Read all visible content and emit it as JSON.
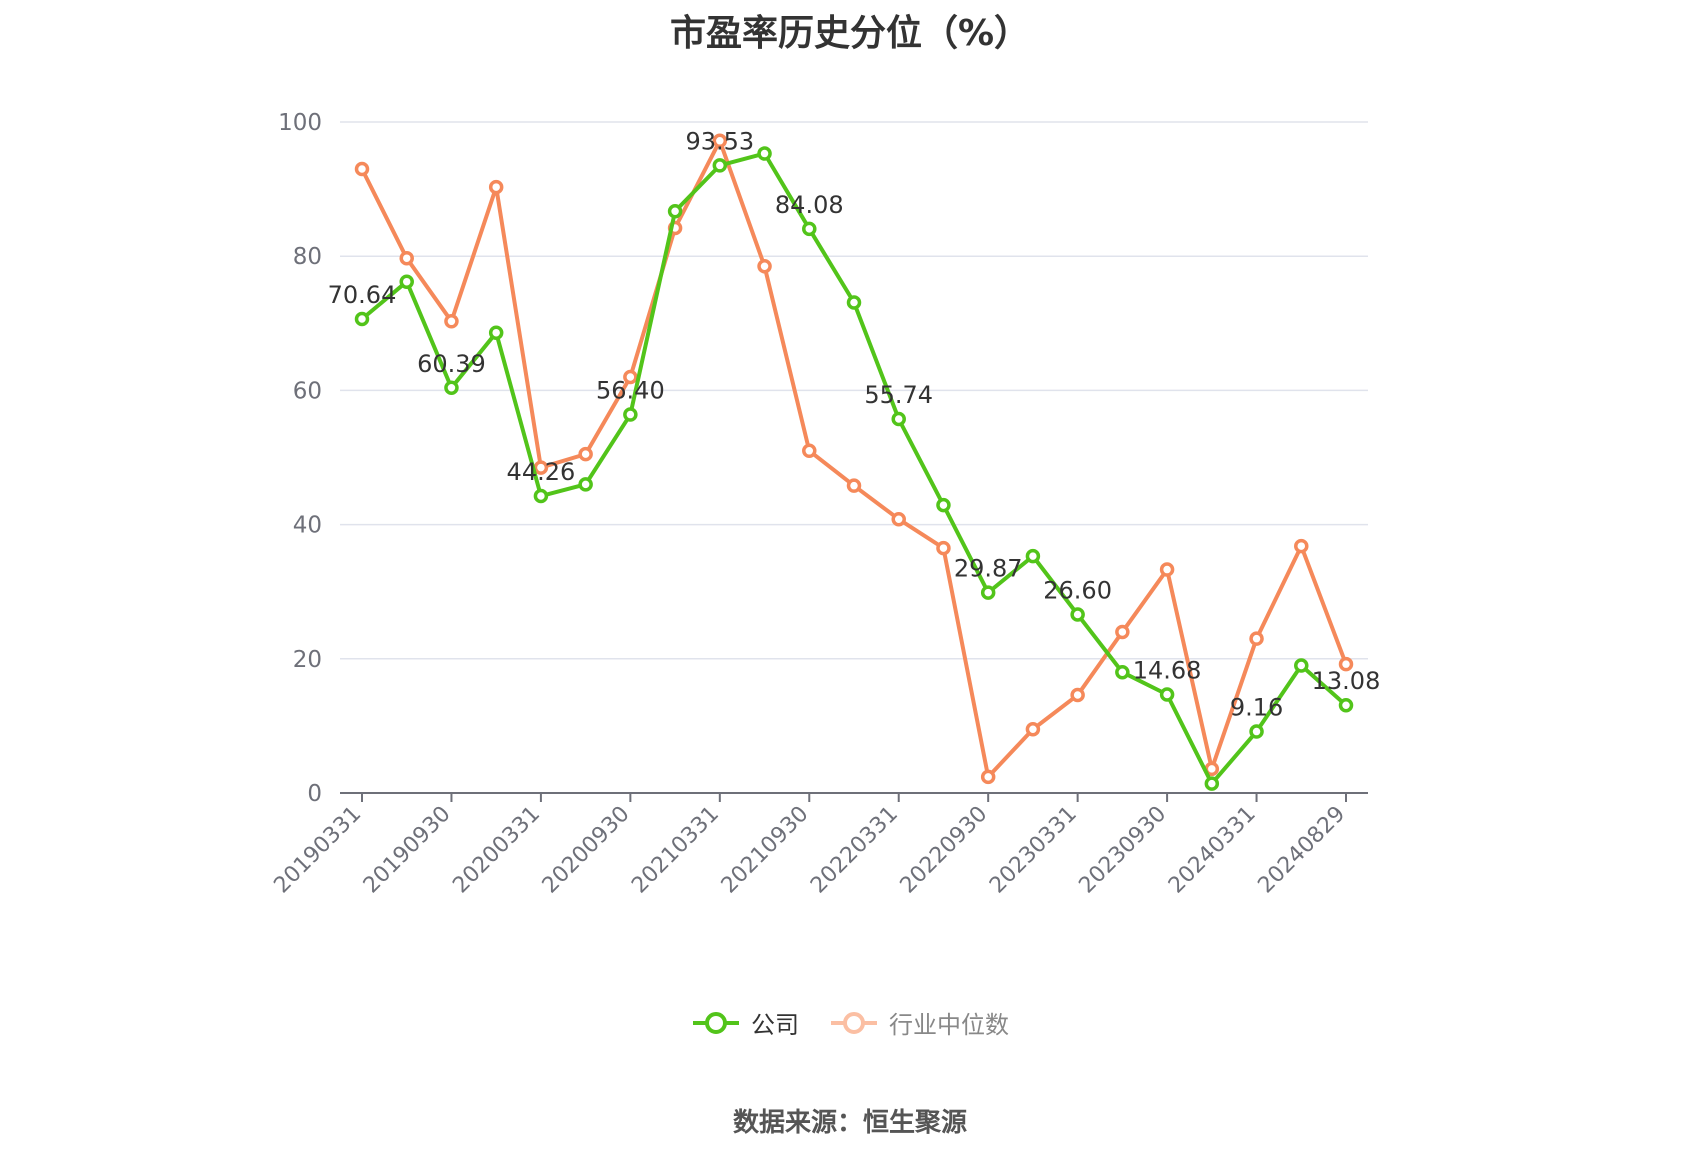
{
  "title": "市盈率历史分位（%）",
  "source": "数据来源：恒生聚源",
  "chart_data": {
    "type": "line",
    "title": "市盈率历史分位（%）",
    "ylim": [
      0,
      100
    ],
    "yticks": [
      0,
      20,
      40,
      60,
      80,
      100
    ],
    "grid": true,
    "legend_position": "bottom",
    "x_tick_labels": [
      "20190331",
      "20190930",
      "20200331",
      "20200930",
      "20210331",
      "20210930",
      "20220331",
      "20220930",
      "20230331",
      "20230930",
      "20240331",
      "20240829"
    ],
    "x": [
      "20190331",
      "20190630",
      "20190930",
      "20191231",
      "20200331",
      "20200630",
      "20200930",
      "20201231",
      "20210331",
      "20210630",
      "20210930",
      "20211231",
      "20220331",
      "20220630",
      "20220930",
      "20221231",
      "20230331",
      "20230630",
      "20230930",
      "20231231",
      "20240331",
      "20240630",
      "20240829"
    ],
    "series": [
      {
        "name": "公司",
        "color": "#52c41a",
        "values": [
          70.64,
          76.2,
          60.39,
          68.6,
          44.26,
          46.0,
          56.4,
          86.7,
          93.53,
          95.3,
          84.08,
          73.1,
          55.74,
          42.9,
          29.87,
          35.3,
          26.6,
          18.0,
          14.68,
          1.4,
          9.16,
          19.0,
          13.08
        ],
        "labels": [
          "70.64",
          "",
          "60.39",
          "",
          "44.26",
          "",
          "56.40",
          "",
          "93.53",
          "",
          "84.08",
          "",
          "55.74",
          "",
          "29.87",
          "",
          "26.60",
          "",
          "14.68",
          "",
          "9.16",
          "",
          "13.08"
        ]
      },
      {
        "name": "行业中位数",
        "color": "#f5895a",
        "values": [
          93.0,
          79.7,
          70.3,
          90.3,
          48.5,
          50.5,
          62.0,
          84.2,
          97.2,
          78.5,
          51.0,
          45.8,
          40.8,
          36.5,
          2.4,
          9.5,
          14.6,
          24.0,
          33.3,
          3.6,
          23.0,
          36.8,
          19.2
        ]
      }
    ]
  }
}
